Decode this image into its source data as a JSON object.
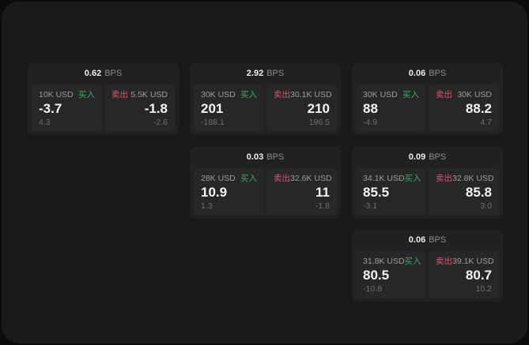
{
  "labels": {
    "bps_unit": "BPS",
    "buy": "买入",
    "sell": "卖出"
  },
  "colors": {
    "window_bg": "#1a1a1a",
    "card_bg": "#212121",
    "panel_bg": "#272727",
    "buy_green": "#3cab6f",
    "sell_red": "#d75670"
  },
  "cards": [
    {
      "bps": "0.62",
      "buy": {
        "amount": "10K USD",
        "price": "-3.7",
        "sub": "4.3"
      },
      "sell": {
        "amount": "5.5K USD",
        "price": "-1.8",
        "sub": "-2.6"
      }
    },
    {
      "bps": "2.92",
      "buy": {
        "amount": "30K USD",
        "price": "201",
        "sub": "-188.1"
      },
      "sell": {
        "amount": "30.1K USD",
        "price": "210",
        "sub": "196.5"
      }
    },
    {
      "bps": "0.06",
      "buy": {
        "amount": "30K USD",
        "price": "88",
        "sub": "-4.9"
      },
      "sell": {
        "amount": "30K USD",
        "price": "88.2",
        "sub": "4.7"
      }
    },
    {
      "bps": "0.03",
      "buy": {
        "amount": "28K USD",
        "price": "10.9",
        "sub": "1.3"
      },
      "sell": {
        "amount": "32.6K USD",
        "price": "11",
        "sub": "-1.8"
      }
    },
    {
      "bps": "0.09",
      "buy": {
        "amount": "34.1K USD",
        "price": "85.5",
        "sub": "-3.1"
      },
      "sell": {
        "amount": "32.8K USD",
        "price": "85.8",
        "sub": "3.0"
      }
    },
    {
      "bps": "0.06",
      "buy": {
        "amount": "31.8K USD",
        "price": "80.5",
        "sub": "-10.8"
      },
      "sell": {
        "amount": "39.1K USD",
        "price": "80.7",
        "sub": "10.2"
      }
    }
  ]
}
